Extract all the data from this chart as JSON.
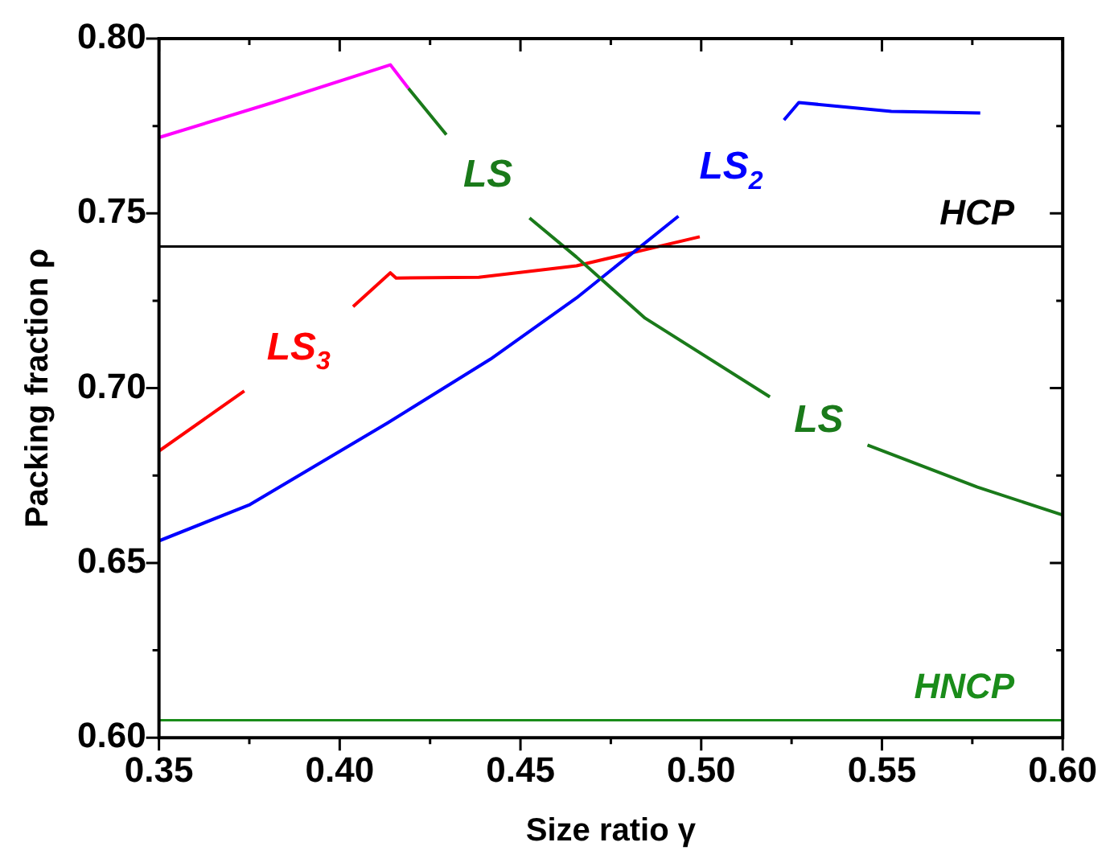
{
  "chart_data": {
    "type": "line",
    "xlabel": "Size ratio γ",
    "ylabel": "Packing fraction ρ",
    "xlim": [
      0.35,
      0.6
    ],
    "xticks": [
      0.35,
      {
        "value": 0.4,
        "label": "0.40"
      },
      0.45,
      {
        "value": 0.5,
        "label": "0.50"
      },
      0.55,
      {
        "value": 0.6,
        "label": "0.60"
      }
    ],
    "ylim": [
      0.6,
      0.8
    ],
    "yticks": [
      {
        "value": 0.6,
        "label": "0.60"
      },
      0.65,
      {
        "value": 0.7,
        "label": "0.70"
      },
      0.75,
      {
        "value": 0.8,
        "label": "0.80"
      }
    ],
    "marker": "none",
    "series": [
      {
        "color": "#ff00ff",
        "x": [
          0.35,
          0.3815,
          0.414,
          0.419
        ],
        "values": [
          0.7717,
          0.7817,
          0.7925,
          0.7858
        ]
      },
      {
        "name": "LS",
        "color": "#1a7a1a",
        "x": [
          0.419,
          0.4295,
          0.44,
          0.4525,
          0.4655,
          0.4845,
          0.519,
          0.533,
          0.546,
          0.5764,
          0.6
        ],
        "values": [
          0.7858,
          0.7725,
          null,
          0.7487,
          0.7375,
          0.72,
          0.6975,
          null,
          0.6837,
          0.6717,
          0.6637
        ]
      },
      {
        "name": "LS$_{2}$",
        "color": "#0000ff",
        "x": [
          0.35,
          0.3752,
          0.4132,
          0.4417,
          0.4655,
          0.4937,
          0.508,
          0.5229,
          0.527,
          0.5526,
          0.5772
        ],
        "values": [
          0.6563,
          0.6667,
          0.69,
          0.7083,
          0.7258,
          0.7492,
          null,
          0.7767,
          0.7817,
          0.7792,
          0.7787
        ]
      },
      {
        "name": "LS$_{3}$",
        "color": "#ff0000",
        "x": [
          0.35,
          0.3736,
          0.388,
          0.4037,
          0.414,
          0.4156,
          0.4385,
          0.4655,
          0.4996
        ],
        "values": [
          0.682,
          0.6992,
          null,
          0.7233,
          0.733,
          0.7315,
          0.7317,
          0.735,
          0.7433
        ]
      }
    ],
    "ref_lines": [
      {
        "axis": "y",
        "value": 0.7405,
        "label": "HCP",
        "color": "#000000"
      },
      {
        "axis": "y",
        "value": 0.605,
        "label": "HNCP",
        "color": "#1a8c1a"
      }
    ]
  }
}
